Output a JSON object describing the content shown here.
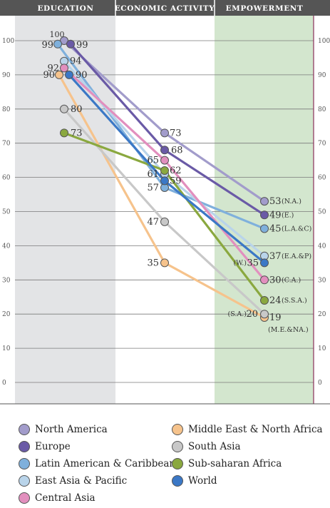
{
  "chart_data": {
    "type": "line",
    "categories": [
      "EDUCATION",
      "ECONOMIC ACTIVITY",
      "EMPOWERMENT"
    ],
    "yticks": [
      "0",
      "10",
      "20",
      "30",
      "40",
      "50",
      "60",
      "70",
      "80",
      "90",
      "100"
    ],
    "ylim": [
      0,
      100
    ],
    "grid": true,
    "shaded_columns": {
      "EDUCATION": "#e3e4e6",
      "EMPOWERMENT": "#d3e6ce"
    },
    "series": [
      {
        "name": "North America",
        "color": "#a29ccb",
        "values": [
          100,
          73,
          53
        ],
        "labels": [
          "100",
          "73",
          "53"
        ],
        "end_tag": "(N.A.)"
      },
      {
        "name": "Europe",
        "color": "#6a5aa6",
        "values": [
          99,
          68,
          49
        ],
        "labels": [
          "99",
          "68",
          "49"
        ],
        "end_tag": "(E.)"
      },
      {
        "name": "Latin American & Caribbean",
        "color": "#7fb0dc",
        "values": [
          99,
          57,
          45
        ],
        "labels": [
          "99",
          "57",
          "45"
        ],
        "end_tag": "(L.A.&C)"
      },
      {
        "name": "East Asia & Pacific",
        "color": "#b9d4ea",
        "values": [
          94,
          61,
          37
        ],
        "labels": [
          "94",
          "61",
          "37"
        ],
        "end_tag": "(E.A.&P)"
      },
      {
        "name": "Central Asia",
        "color": "#e28fbe",
        "values": [
          92,
          65,
          30
        ],
        "labels": [
          "92",
          "65",
          "30"
        ],
        "end_tag": "(C.A.)"
      },
      {
        "name": "Middle East & North Africa",
        "color": "#f6c38c",
        "values": [
          90,
          35,
          19
        ],
        "labels": [
          "90",
          "35",
          "19"
        ],
        "end_tag": "(M.E.&NA.)"
      },
      {
        "name": "South Asia",
        "color": "#c8c8c8",
        "values": [
          80,
          47,
          20
        ],
        "labels": [
          "80",
          "47",
          "20"
        ],
        "end_tag": "(S.A.)"
      },
      {
        "name": "Sub-saharan Africa",
        "color": "#8aa83f",
        "values": [
          73,
          62,
          24
        ],
        "labels": [
          "73",
          "62",
          "24"
        ],
        "end_tag": "(S.S.A.)"
      },
      {
        "name": "World",
        "color": "#3b78c6",
        "values": [
          90,
          59,
          35
        ],
        "labels": [
          "90",
          "59",
          "35"
        ],
        "end_tag": "(W.)"
      }
    ]
  }
}
